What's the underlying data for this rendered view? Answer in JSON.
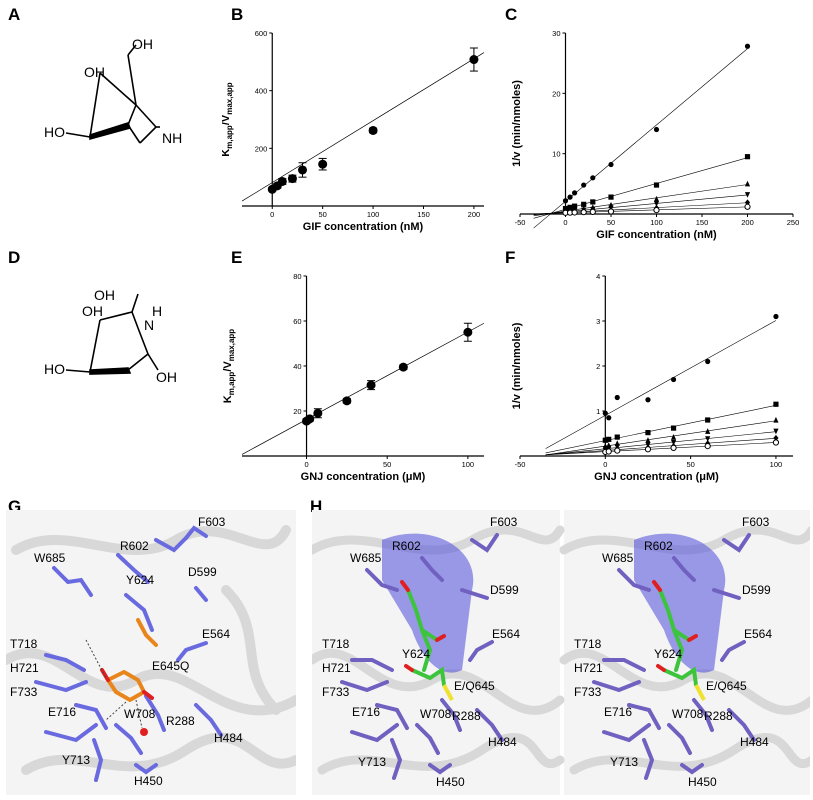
{
  "panels": {
    "A": "A",
    "B": "B",
    "C": "C",
    "D": "D",
    "E": "E",
    "F": "F",
    "G": "G",
    "H": "H"
  },
  "molecules": {
    "A": {
      "oh_top": "OH",
      "oh_left": "OH",
      "ho": "HO",
      "nh": "NH"
    },
    "D": {
      "oh_top": "OH",
      "oh_left": "OH",
      "ho": "HO",
      "nh": "N",
      "h": "H",
      "oh_right": "OH"
    }
  },
  "chart_data": [
    {
      "id": "B",
      "type": "scatter",
      "xlabel": "GIF concentration (nM)",
      "ylabel_main": "K",
      "ylabel_sub1": "m,app",
      "ylabel_mid": "/V",
      "ylabel_sub2": "max,app",
      "xlim": [
        -30,
        210
      ],
      "ylim": [
        0,
        600
      ],
      "xticks": [
        0,
        50,
        100,
        150,
        200
      ],
      "yticks": [
        200,
        400,
        600
      ],
      "x": [
        0,
        5,
        10,
        20,
        30,
        50,
        100,
        200
      ],
      "y": [
        58,
        70,
        85,
        95,
        125,
        145,
        262,
        508
      ],
      "yerr": [
        5,
        8,
        10,
        12,
        25,
        20,
        8,
        40
      ],
      "fit": {
        "x": [
          -30,
          210
        ],
        "y": [
          17,
          532
        ]
      }
    },
    {
      "id": "C",
      "type": "scatter",
      "xlabel": "GIF concentration (nM)",
      "ylabel": "1/v (min/nmoles)",
      "xlim": [
        -50,
        250
      ],
      "ylim": [
        0,
        30
      ],
      "xticks": [
        -50,
        0,
        50,
        100,
        150,
        200,
        250
      ],
      "yticks": [
        10,
        20,
        30
      ],
      "series": [
        {
          "marker": "circle",
          "x": [
            0,
            5,
            10,
            20,
            30,
            50,
            100,
            200
          ],
          "y": [
            2.2,
            2.8,
            3.5,
            4.8,
            6.0,
            8.2,
            14.0,
            27.8
          ]
        },
        {
          "marker": "square",
          "x": [
            0,
            5,
            10,
            20,
            30,
            50,
            100,
            200
          ],
          "y": [
            0.9,
            1.1,
            1.3,
            1.6,
            2.0,
            2.8,
            4.8,
            9.5
          ]
        },
        {
          "marker": "triangle",
          "x": [
            0,
            5,
            10,
            20,
            30,
            50,
            100,
            200
          ],
          "y": [
            0.55,
            0.65,
            0.75,
            0.9,
            1.1,
            1.5,
            2.5,
            5.0
          ]
        },
        {
          "marker": "triangle-down",
          "x": [
            0,
            5,
            10,
            20,
            30,
            50,
            100,
            200
          ],
          "y": [
            0.4,
            0.45,
            0.52,
            0.62,
            0.75,
            1.0,
            1.7,
            3.2
          ]
        },
        {
          "marker": "diamond",
          "x": [
            0,
            5,
            10,
            20,
            30,
            50,
            100,
            200
          ],
          "y": [
            0.28,
            0.31,
            0.35,
            0.42,
            0.5,
            0.62,
            1.0,
            1.9
          ]
        },
        {
          "marker": "circle-open",
          "x": [
            0,
            5,
            10,
            20,
            30,
            50,
            100,
            200
          ],
          "y": [
            0.2,
            0.22,
            0.25,
            0.3,
            0.35,
            0.42,
            0.65,
            1.2
          ]
        }
      ]
    },
    {
      "id": "E",
      "type": "scatter",
      "xlabel": "GNJ concentration (μM)",
      "ylabel_main": "K",
      "ylabel_sub1": "m,app",
      "ylabel_mid": "/V",
      "ylabel_sub2": "max,app",
      "xlim": [
        -40,
        110
      ],
      "ylim": [
        0,
        80
      ],
      "xticks": [
        0,
        50,
        100
      ],
      "yticks": [
        20,
        40,
        60,
        80
      ],
      "x": [
        0,
        2,
        7,
        25,
        40,
        60,
        100
      ],
      "y": [
        15.5,
        16.5,
        19,
        24.5,
        31.5,
        39.5,
        55
      ],
      "yerr": [
        1,
        1,
        2,
        1,
        2,
        1,
        4
      ],
      "fit": {
        "x": [
          -40,
          110
        ],
        "y": [
          0.7,
          59
        ]
      }
    },
    {
      "id": "F",
      "type": "scatter",
      "xlabel": "GNJ concentration (μM)",
      "ylabel": "1/v (min/nmoles)",
      "xlim": [
        -50,
        110
      ],
      "ylim": [
        0,
        4
      ],
      "xticks": [
        -50,
        0,
        50,
        100
      ],
      "yticks": [
        1,
        2,
        3,
        4
      ],
      "series": [
        {
          "marker": "circle",
          "x": [
            0,
            2,
            7,
            25,
            40,
            60,
            100
          ],
          "y": [
            0.95,
            0.85,
            1.3,
            1.25,
            1.7,
            2.1,
            3.1
          ]
        },
        {
          "marker": "square",
          "x": [
            0,
            2,
            7,
            25,
            40,
            60,
            100
          ],
          "y": [
            0.35,
            0.37,
            0.42,
            0.52,
            0.62,
            0.8,
            1.15
          ]
        },
        {
          "marker": "triangle",
          "x": [
            0,
            2,
            7,
            25,
            40,
            60,
            100
          ],
          "y": [
            0.22,
            0.24,
            0.28,
            0.35,
            0.42,
            0.55,
            0.8
          ]
        },
        {
          "marker": "triangle-down",
          "x": [
            0,
            2,
            7,
            25,
            40,
            60,
            100
          ],
          "y": [
            0.16,
            0.17,
            0.2,
            0.25,
            0.3,
            0.38,
            0.55
          ]
        },
        {
          "marker": "diamond",
          "x": [
            0,
            2,
            7,
            25,
            40,
            60,
            100
          ],
          "y": [
            0.12,
            0.13,
            0.15,
            0.19,
            0.22,
            0.28,
            0.4
          ]
        },
        {
          "marker": "circle-open",
          "x": [
            0,
            2,
            7,
            25,
            40,
            60,
            100
          ],
          "y": [
            0.09,
            0.1,
            0.12,
            0.15,
            0.18,
            0.22,
            0.3
          ]
        }
      ]
    }
  ],
  "structure_G": {
    "residues": [
      "F603",
      "R602",
      "W685",
      "Y624",
      "D599",
      "T718",
      "E564",
      "H721",
      "E645Q",
      "F733",
      "E716",
      "W708",
      "R288",
      "H484",
      "Y713",
      "H450"
    ]
  },
  "structure_H": {
    "residues": [
      "F603",
      "R602",
      "W685",
      "D599",
      "T718",
      "Y624",
      "E564",
      "H721",
      "E/Q645",
      "F733",
      "E716",
      "W708",
      "R288",
      "H484",
      "Y713",
      "H450"
    ]
  },
  "colors": {
    "residue": "#6a6ae0",
    "ligand_orange": "#e8861c",
    "ligand_green": "#3cc43c",
    "surface": "#5a5adc",
    "oxygen": "#e02020",
    "sulfur_yellow": "#f0e030"
  }
}
